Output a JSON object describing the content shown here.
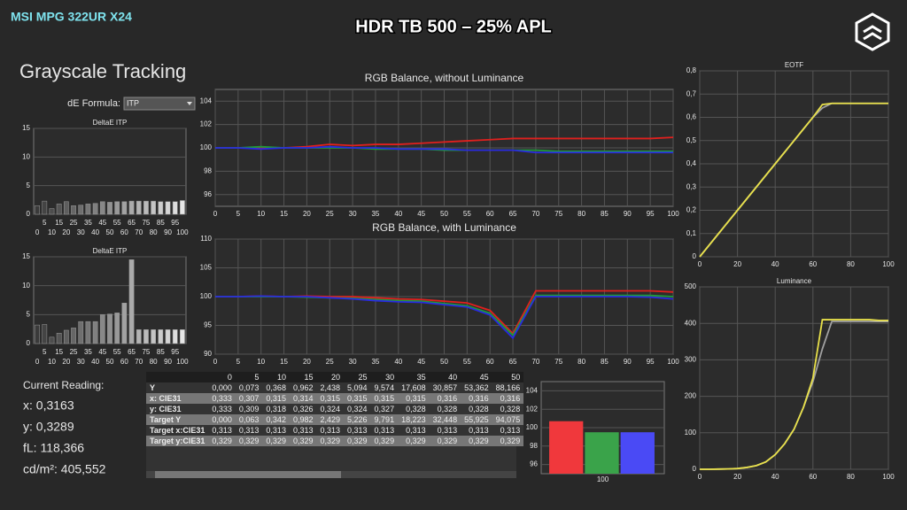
{
  "header": {
    "brand": "MSI MPG 322UR X24",
    "title": "HDR TB 500 – 25% APL"
  },
  "panel": {
    "title": "Grayscale Tracking",
    "formula_label": "dE Formula:",
    "formula_value": "ITP"
  },
  "reading": {
    "title": "Current Reading:",
    "x": "x: 0,3163",
    "y": "y: 0,3289",
    "fl": "fL: 118,366",
    "cdm2": "cd/m²: 405,552"
  },
  "table": {
    "columns": [
      "0",
      "5",
      "10",
      "15",
      "20",
      "25",
      "30",
      "35",
      "40",
      "45",
      "50"
    ],
    "rows": [
      [
        "Y",
        "0,000",
        "0,073",
        "0,368",
        "0,962",
        "2,438",
        "5,094",
        "9,574",
        "17,608",
        "30,857",
        "53,362",
        "88,166"
      ],
      [
        "x: CIE31",
        "0,333",
        "0,307",
        "0,315",
        "0,314",
        "0,315",
        "0,315",
        "0,315",
        "0,315",
        "0,316",
        "0,316",
        "0,316"
      ],
      [
        "y: CIE31",
        "0,333",
        "0,309",
        "0,318",
        "0,326",
        "0,324",
        "0,324",
        "0,327",
        "0,328",
        "0,328",
        "0,328",
        "0,328"
      ],
      [
        "Target Y",
        "0,000",
        "0,063",
        "0,342",
        "0,982",
        "2,429",
        "5,226",
        "9,791",
        "18,223",
        "32,448",
        "55,925",
        "94,075"
      ],
      [
        "Target x:CIE31",
        "0,313",
        "0,313",
        "0,313",
        "0,313",
        "0,313",
        "0,313",
        "0,313",
        "0,313",
        "0,313",
        "0,313",
        "0,313"
      ],
      [
        "Target y:CIE31",
        "0,329",
        "0,329",
        "0,329",
        "0,329",
        "0,329",
        "0,329",
        "0,329",
        "0,329",
        "0,329",
        "0,329",
        "0,329"
      ]
    ]
  },
  "chart_data": [
    {
      "type": "bar",
      "title": "DeltaE ITP",
      "categories": [
        0,
        5,
        10,
        15,
        20,
        25,
        30,
        35,
        40,
        45,
        50,
        55,
        60,
        65,
        70,
        75,
        80,
        85,
        90,
        95,
        100
      ],
      "values": [
        1.5,
        2.3,
        1.0,
        1.8,
        2.2,
        1.5,
        1.6,
        1.8,
        1.9,
        2.2,
        2.1,
        2.2,
        2.2,
        2.3,
        2.3,
        2.3,
        2.3,
        2.2,
        2.2,
        2.2,
        2.4
      ],
      "colors": [
        "#3a3a3a",
        "#444444",
        "#4d4d4d",
        "#555555",
        "#5e5e5e",
        "#666666",
        "#6f6f6f",
        "#777777",
        "#808080",
        "#888888",
        "#919191",
        "#999999",
        "#a2a2a2",
        "#aaaaaa",
        "#b3b3b3",
        "#bbbbbb",
        "#c4c4c4",
        "#cccccc",
        "#d5d5d5",
        "#dddddd",
        "#e6e6e6"
      ],
      "ylim": [
        0,
        15
      ],
      "yticks": [
        0,
        5,
        10,
        15
      ],
      "grid": true
    },
    {
      "type": "bar",
      "title": "DeltaE ITP",
      "categories": [
        0,
        5,
        10,
        15,
        20,
        25,
        30,
        35,
        40,
        45,
        50,
        55,
        60,
        65,
        70,
        75,
        80,
        85,
        90,
        95,
        100
      ],
      "values": [
        3.2,
        3.3,
        1.1,
        1.8,
        2.3,
        2.7,
        3.8,
        3.8,
        3.8,
        5.0,
        5.1,
        5.3,
        7.0,
        14.5,
        2.4,
        2.4,
        2.4,
        2.4,
        2.4,
        2.4,
        2.4
      ],
      "colors": [
        "#3a3a3a",
        "#444444",
        "#4d4d4d",
        "#555555",
        "#5e5e5e",
        "#666666",
        "#6f6f6f",
        "#777777",
        "#808080",
        "#888888",
        "#919191",
        "#999999",
        "#a2a2a2",
        "#aaaaaa",
        "#b3b3b3",
        "#bbbbbb",
        "#c4c4c4",
        "#cccccc",
        "#d5d5d5",
        "#dddddd",
        "#e6e6e6"
      ],
      "ylim": [
        0,
        15
      ],
      "yticks": [
        0,
        5,
        10,
        15
      ],
      "grid": true
    },
    {
      "type": "line",
      "title": "RGB Balance, without Luminance",
      "x": [
        0,
        5,
        10,
        15,
        20,
        25,
        30,
        35,
        40,
        45,
        50,
        55,
        60,
        65,
        70,
        75,
        80,
        85,
        90,
        95,
        100
      ],
      "series": [
        {
          "color": "#e0201e",
          "values": [
            100,
            100,
            100,
            100,
            100.1,
            100.3,
            100.2,
            100.3,
            100.3,
            100.4,
            100.5,
            100.6,
            100.7,
            100.8,
            100.8,
            100.8,
            100.8,
            100.8,
            100.8,
            100.8,
            100.9
          ]
        },
        {
          "color": "#1f9a3a",
          "values": [
            100,
            100,
            100.1,
            100,
            100,
            100,
            100,
            99.9,
            99.9,
            99.9,
            99.8,
            99.8,
            99.8,
            99.8,
            99.8,
            99.7,
            99.7,
            99.7,
            99.7,
            99.7,
            99.7
          ]
        },
        {
          "color": "#2a2ae0",
          "values": [
            100,
            100,
            99.9,
            100,
            100,
            100.1,
            100,
            100,
            99.9,
            99.9,
            99.9,
            99.8,
            99.8,
            99.8,
            99.6,
            99.6,
            99.6,
            99.6,
            99.6,
            99.6,
            99.6
          ]
        }
      ],
      "xlim": [
        0,
        100
      ],
      "xticks": [
        0,
        5,
        10,
        15,
        20,
        25,
        30,
        35,
        40,
        45,
        50,
        55,
        60,
        65,
        70,
        75,
        80,
        85,
        90,
        95,
        100
      ],
      "ylim": [
        95,
        105
      ],
      "yticks": [
        96,
        98,
        100,
        102,
        104
      ],
      "grid": true
    },
    {
      "type": "line",
      "title": "RGB Balance, with Luminance",
      "x": [
        0,
        5,
        10,
        15,
        20,
        25,
        30,
        35,
        40,
        45,
        50,
        55,
        60,
        65,
        70,
        75,
        80,
        85,
        90,
        95,
        100
      ],
      "series": [
        {
          "color": "#e0201e",
          "values": [
            100,
            100,
            100.1,
            100,
            100.1,
            100,
            100,
            99.8,
            99.6,
            99.5,
            99.2,
            98.9,
            97.6,
            93.6,
            101,
            101,
            101,
            101,
            101,
            101,
            100.8
          ]
        },
        {
          "color": "#1f9a3a",
          "values": [
            100,
            100,
            100,
            100,
            99.9,
            99.8,
            99.7,
            99.5,
            99.3,
            99.2,
            98.8,
            98.4,
            97.1,
            93.3,
            100.2,
            100.2,
            100.2,
            100.2,
            100.2,
            100.2,
            100
          ]
        },
        {
          "color": "#2a2ae0",
          "values": [
            100,
            100,
            100.1,
            100,
            100,
            99.8,
            99.6,
            99.3,
            99.1,
            99,
            98.6,
            98.2,
            96.8,
            92.8,
            100,
            100,
            100,
            100,
            100,
            99.9,
            99.6
          ]
        }
      ],
      "xlim": [
        0,
        100
      ],
      "xticks": [
        0,
        5,
        10,
        15,
        20,
        25,
        30,
        35,
        40,
        45,
        50,
        55,
        60,
        65,
        70,
        75,
        80,
        85,
        90,
        95,
        100
      ],
      "ylim": [
        90,
        110
      ],
      "yticks": [
        90,
        95,
        100,
        105,
        110
      ],
      "grid": true
    },
    {
      "type": "line",
      "title": "EOTF",
      "x": [
        0,
        5,
        10,
        15,
        20,
        25,
        30,
        35,
        40,
        45,
        50,
        55,
        60,
        65,
        70,
        75,
        80,
        85,
        90,
        95,
        100
      ],
      "series": [
        {
          "color": "#a0a0a0",
          "values": [
            0,
            0.05,
            0.1,
            0.15,
            0.2,
            0.25,
            0.3,
            0.35,
            0.4,
            0.45,
            0.5,
            0.55,
            0.6,
            0.64,
            0.66,
            0.66,
            0.66,
            0.66,
            0.66,
            0.66,
            0.66
          ]
        },
        {
          "color": "#e8e04a",
          "values": [
            0,
            0.05,
            0.1,
            0.15,
            0.2,
            0.25,
            0.3,
            0.35,
            0.4,
            0.45,
            0.5,
            0.55,
            0.6,
            0.655,
            0.66,
            0.66,
            0.66,
            0.66,
            0.66,
            0.66,
            0.66
          ]
        }
      ],
      "xlim": [
        0,
        100
      ],
      "xticks": [
        0,
        20,
        40,
        60,
        80,
        100
      ],
      "ylim": [
        0,
        0.8
      ],
      "yticks": [
        0,
        {
          "value": 0.1,
          "label": "0,1"
        },
        {
          "value": 0.2,
          "label": "0,2"
        },
        {
          "value": 0.3,
          "label": "0,3"
        },
        {
          "value": 0.4,
          "label": "0,4"
        },
        {
          "value": 0.5,
          "label": "0,5"
        },
        {
          "value": 0.6,
          "label": "0,6"
        },
        {
          "value": 0.7,
          "label": "0,7"
        },
        {
          "value": 0.8,
          "label": "0,8"
        }
      ],
      "grid": true
    },
    {
      "type": "line",
      "title": "Luminance",
      "x": [
        0,
        5,
        10,
        15,
        20,
        25,
        30,
        35,
        40,
        45,
        50,
        55,
        60,
        65,
        70,
        75,
        80,
        85,
        90,
        95,
        100
      ],
      "series": [
        {
          "color": "#a0a0a0",
          "values": [
            0,
            0,
            0.5,
            1,
            2,
            5,
            10,
            20,
            40,
            70,
            110,
            170,
            240,
            330,
            405,
            405,
            405,
            405,
            405,
            405,
            405
          ]
        },
        {
          "color": "#e8e04a",
          "values": [
            0,
            0,
            0.5,
            1,
            2,
            5,
            10,
            20,
            40,
            70,
            110,
            170,
            250,
            410,
            410,
            410,
            410,
            410,
            410,
            408,
            408
          ]
        }
      ],
      "xlim": [
        0,
        100
      ],
      "xticks": [
        0,
        20,
        40,
        60,
        80,
        100
      ],
      "ylim": [
        0,
        500
      ],
      "yticks": [
        0,
        100,
        200,
        300,
        400,
        500
      ],
      "grid": true
    },
    {
      "type": "groupbar",
      "categories": [
        100
      ],
      "series": [
        {
          "color": "#f0383c",
          "values": [
            100.7
          ]
        },
        {
          "color": "#3aa34a",
          "values": [
            99.5
          ]
        },
        {
          "color": "#4a4af5",
          "values": [
            99.5
          ]
        }
      ],
      "ylim": [
        95,
        105
      ],
      "yticks": [
        96,
        98,
        100,
        102,
        104
      ],
      "grid": true
    }
  ]
}
